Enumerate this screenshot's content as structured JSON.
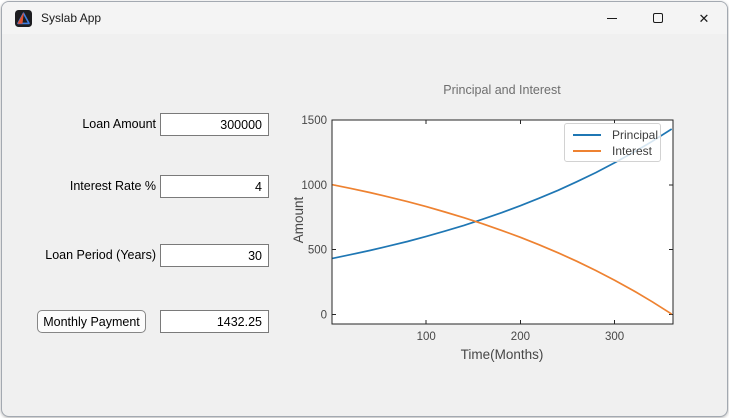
{
  "window": {
    "title": "Syslab App",
    "app_icon": "syslab-logo-icon",
    "controls": [
      {
        "name": "minimize",
        "icon": "minimize-icon"
      },
      {
        "name": "maximize",
        "icon": "maximize-icon"
      },
      {
        "name": "close",
        "icon": "close-icon",
        "glyph": "✕"
      }
    ]
  },
  "form": {
    "fields": [
      {
        "label": "Loan Amount",
        "value": "300000"
      },
      {
        "label": "Interest Rate %",
        "value": "4"
      },
      {
        "label": "Loan Period (Years)",
        "value": "30"
      }
    ],
    "button": {
      "label": "Monthly Payment",
      "value": "1432.25"
    }
  },
  "chart_data": {
    "type": "line",
    "title": "Principal and Interest",
    "xlabel": "Time(Months)",
    "ylabel": "Amount",
    "xlim": [
      0,
      362
    ],
    "ylim": [
      -75,
      1500
    ],
    "xticks": [
      100,
      200,
      300
    ],
    "yticks": [
      0,
      500,
      1000,
      1500
    ],
    "grid": false,
    "legend_position": "top-right",
    "axis_color": "#262626",
    "x": [
      1,
      20,
      40,
      60,
      80,
      100,
      120,
      140,
      160,
      180,
      200,
      220,
      240,
      260,
      280,
      300,
      320,
      340,
      360
    ],
    "series": [
      {
        "name": "Principal",
        "color": "#1f77b4",
        "values": [
          432.3,
          460.5,
          492.2,
          526.1,
          562.3,
          601.0,
          642.3,
          686.5,
          733.8,
          784.3,
          838.3,
          895.9,
          957.6,
          1023.5,
          1094.0,
          1169.2,
          1249.7,
          1335.7,
          1427.6
        ]
      },
      {
        "name": "Interest",
        "color": "#ee8231",
        "values": [
          1000.0,
          971.8,
          940.1,
          906.2,
          870.0,
          831.3,
          789.9,
          745.7,
          698.5,
          647.9,
          594.0,
          536.3,
          474.7,
          408.7,
          338.3,
          263.0,
          182.6,
          96.6,
          4.7
        ]
      }
    ]
  }
}
